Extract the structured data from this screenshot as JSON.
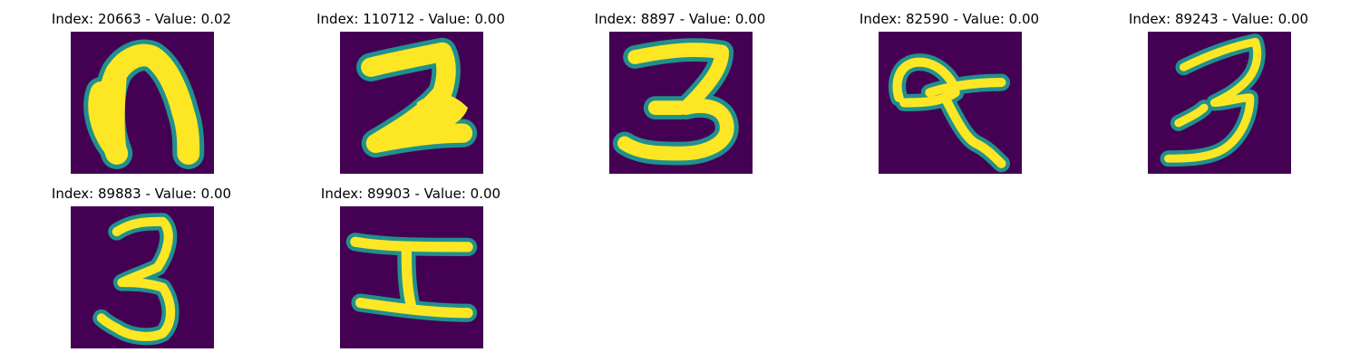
{
  "figure": {
    "background": "#ffffff",
    "panel_background": "#440154",
    "stroke_edge_color": "#21908d",
    "stroke_core_color": "#fde725",
    "panels": [
      {
        "title": "Index: 20663 - Value: 0.02",
        "glyph": "n"
      },
      {
        "title": "Index: 110712 - Value: 0.00",
        "glyph": "2"
      },
      {
        "title": "Index: 8897 - Value: 0.00",
        "glyph": "3"
      },
      {
        "title": "Index: 82590 - Value: 0.00",
        "glyph": "a"
      },
      {
        "title": "Index: 89243 - Value: 0.00",
        "glyph": "3"
      },
      {
        "title": "Index: 89883 - Value: 0.00",
        "glyph": "3"
      },
      {
        "title": "Index: 89903 - Value: 0.00",
        "glyph": "H"
      }
    ]
  }
}
